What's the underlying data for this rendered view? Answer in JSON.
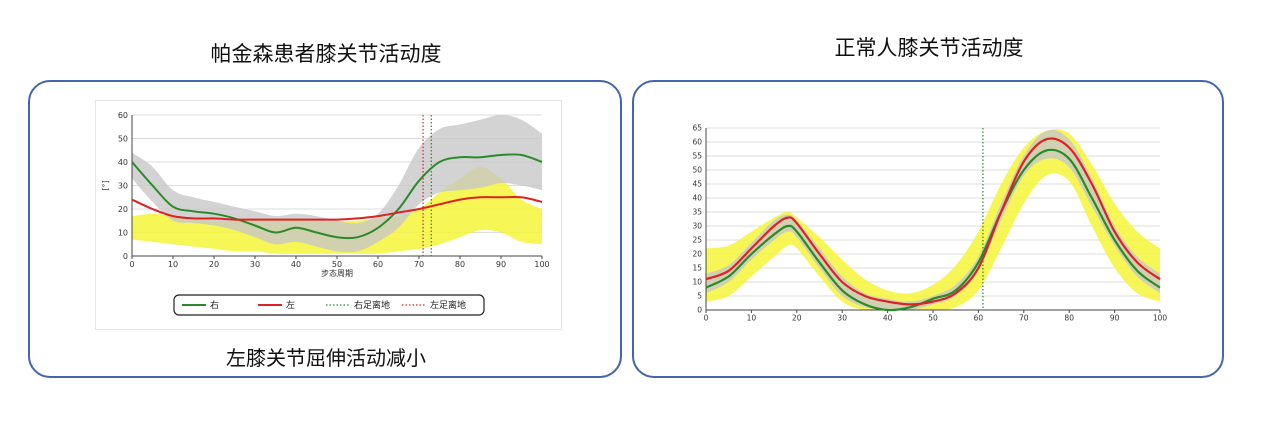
{
  "panels": {
    "left_title": "帕金森患者膝关节活动度",
    "right_title": "正常人膝关节活动度",
    "left_caption": "左膝关节屈伸活动减小"
  },
  "chart_data": [
    {
      "type": "line",
      "title": "帕金森患者膝关节活动度",
      "xlabel": "步态周期",
      "ylabel": "[°]",
      "xlim": [
        0,
        100
      ],
      "ylim": [
        0,
        60
      ],
      "xticks": [
        0,
        10,
        20,
        30,
        40,
        50,
        60,
        70,
        80,
        90,
        100
      ],
      "yticks": [
        0,
        10,
        20,
        30,
        40,
        50,
        60
      ],
      "grid": true,
      "legend_position": "bottom",
      "series": [
        {
          "name": "右",
          "color": "#2a8a2a",
          "x": [
            0,
            5,
            10,
            15,
            20,
            25,
            30,
            35,
            40,
            45,
            50,
            55,
            60,
            65,
            70,
            75,
            80,
            85,
            90,
            95,
            100
          ],
          "values": [
            40,
            30,
            21,
            19,
            18,
            16,
            13,
            10,
            12,
            10,
            8,
            8,
            12,
            20,
            32,
            40,
            42,
            42,
            43,
            43,
            40
          ]
        },
        {
          "name": "左",
          "color": "#dd2222",
          "x": [
            0,
            5,
            10,
            15,
            20,
            25,
            30,
            35,
            40,
            45,
            50,
            55,
            60,
            65,
            70,
            75,
            80,
            85,
            90,
            95,
            100
          ],
          "values": [
            24,
            20,
            17,
            16,
            16,
            15.5,
            15.5,
            15.5,
            15.5,
            15.5,
            15.5,
            16,
            17,
            18.5,
            20,
            22,
            24,
            25,
            25,
            25,
            23
          ]
        },
        {
          "name": "右足离地",
          "color": "#2a8a2a",
          "style": "dotted-vertical",
          "x_position": 73
        },
        {
          "name": "左足离地",
          "color": "#dd2222",
          "style": "dotted-vertical",
          "x_position": 71
        }
      ],
      "bands": [
        {
          "color": "#f5f53a",
          "x": [
            0,
            5,
            10,
            15,
            20,
            25,
            30,
            35,
            40,
            45,
            50,
            55,
            60,
            65,
            70,
            75,
            80,
            85,
            90,
            95,
            100
          ],
          "upper": [
            17,
            18,
            17,
            16,
            15,
            15,
            16,
            16,
            16,
            15,
            15,
            15,
            16,
            17,
            20,
            27,
            33,
            38,
            33,
            24,
            20
          ],
          "lower": [
            7,
            6,
            5,
            4,
            3,
            2,
            2,
            1,
            1,
            1,
            1,
            1,
            1,
            2,
            3,
            5,
            8,
            11,
            10,
            6,
            5
          ]
        },
        {
          "color": "#c8c8c8",
          "x": [
            0,
            5,
            10,
            15,
            20,
            25,
            30,
            35,
            40,
            45,
            50,
            55,
            60,
            65,
            70,
            75,
            80,
            85,
            90,
            95,
            100
          ],
          "upper": [
            44,
            38,
            28,
            25,
            23,
            21,
            19,
            17,
            18,
            17,
            15,
            14,
            18,
            30,
            46,
            54,
            56,
            58,
            60,
            58,
            52
          ],
          "lower": [
            33,
            23,
            15,
            14,
            13,
            11,
            8,
            5,
            6,
            4,
            2,
            2,
            6,
            12,
            22,
            27,
            28,
            29,
            31,
            30,
            28
          ]
        }
      ]
    },
    {
      "type": "line",
      "title": "正常人膝关节活动度",
      "xlim": [
        0,
        100
      ],
      "ylim": [
        0,
        65
      ],
      "xticks": [
        0,
        10,
        20,
        30,
        40,
        50,
        60,
        70,
        80,
        90,
        100
      ],
      "yticks": [
        0,
        5,
        10,
        15,
        20,
        25,
        30,
        35,
        40,
        45,
        50,
        55,
        60,
        65
      ],
      "grid": true,
      "series": [
        {
          "color": "#2a8a2a",
          "x": [
            0,
            5,
            10,
            15,
            18,
            20,
            25,
            30,
            35,
            40,
            45,
            50,
            55,
            60,
            65,
            70,
            75,
            80,
            85,
            90,
            95,
            100
          ],
          "values": [
            8,
            12,
            20,
            27,
            30,
            28,
            17,
            7,
            2,
            0,
            1,
            4,
            7,
            17,
            35,
            50,
            57,
            54,
            40,
            25,
            14,
            8
          ]
        },
        {
          "color": "#dd2222",
          "x": [
            0,
            5,
            10,
            15,
            18,
            20,
            25,
            30,
            35,
            40,
            45,
            50,
            55,
            60,
            65,
            70,
            75,
            80,
            85,
            90,
            95,
            100
          ],
          "values": [
            11,
            14,
            22,
            30,
            33,
            31,
            20,
            10,
            5,
            3,
            2,
            3,
            6,
            15,
            35,
            53,
            61,
            58,
            45,
            28,
            17,
            11
          ]
        },
        {
          "color": "#2a8a2a",
          "style": "dotted-vertical",
          "x_position": 61
        }
      ],
      "bands": [
        {
          "color": "#f5f53a",
          "x": [
            0,
            5,
            10,
            15,
            18,
            20,
            25,
            30,
            35,
            40,
            45,
            50,
            55,
            60,
            65,
            70,
            75,
            80,
            85,
            90,
            95,
            100
          ],
          "upper": [
            22,
            23,
            28,
            33,
            35,
            33,
            26,
            18,
            11,
            7,
            6,
            9,
            16,
            28,
            45,
            58,
            64,
            63,
            52,
            38,
            28,
            22
          ],
          "lower": [
            3,
            5,
            12,
            19,
            23,
            22,
            12,
            3,
            0,
            0,
            0,
            0,
            1,
            7,
            22,
            38,
            48,
            46,
            30,
            15,
            6,
            3
          ]
        },
        {
          "color": "#c8c8c8",
          "x": [
            0,
            5,
            10,
            15,
            18,
            20,
            25,
            30,
            35,
            40,
            45,
            50,
            55,
            60,
            65,
            70,
            75,
            80,
            85,
            90,
            95,
            100
          ],
          "upper": [
            13,
            16,
            24,
            32,
            34,
            32,
            22,
            12,
            6,
            4,
            3,
            5,
            9,
            19,
            38,
            55,
            64,
            61,
            47,
            30,
            19,
            13
          ],
          "lower": [
            6,
            10,
            18,
            25,
            28,
            26,
            15,
            5,
            1,
            0,
            0,
            2,
            5,
            14,
            32,
            48,
            54,
            51,
            37,
            23,
            12,
            6
          ]
        }
      ]
    }
  ]
}
